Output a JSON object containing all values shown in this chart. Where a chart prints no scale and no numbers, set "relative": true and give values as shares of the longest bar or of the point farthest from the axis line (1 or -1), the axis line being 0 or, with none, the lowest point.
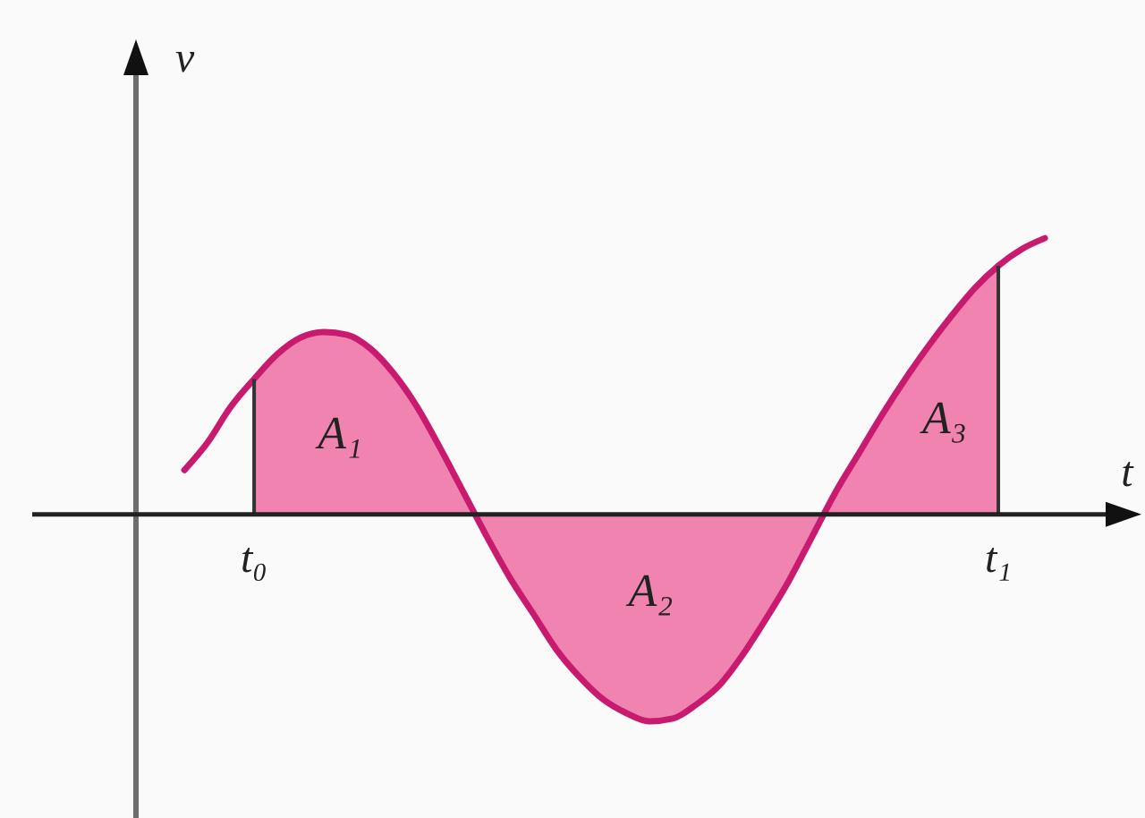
{
  "chart_data": {
    "type": "line",
    "relative": true,
    "xlabel": "t",
    "ylabel": "v",
    "categories": [
      null,
      null,
      null,
      "t₀",
      null,
      null,
      null,
      null,
      null,
      null,
      null,
      null,
      null,
      null,
      null,
      null,
      null,
      null,
      null,
      null,
      null,
      null,
      null,
      null,
      null,
      null,
      null,
      null,
      null,
      null,
      null,
      null,
      null,
      null,
      null,
      "t₁",
      null,
      null
    ],
    "series": [
      {
        "type": "area",
        "color": "#f083b0",
        "values": [
          null,
          null,
          null,
          0.49,
          0.58,
          0.64,
          0.66,
          0.65,
          0.6,
          0.51,
          0.39,
          0.24,
          0.08,
          -0.08,
          -0.23,
          -0.36,
          -0.49,
          -0.59,
          -0.67,
          -0.72,
          -0.75,
          -0.74,
          -0.69,
          -0.62,
          -0.51,
          -0.38,
          -0.24,
          -0.08,
          0.08,
          0.22,
          0.36,
          0.49,
          0.61,
          0.72,
          0.82,
          0.9,
          null,
          null
        ]
      },
      {
        "color": "#c81a6e",
        "values": [
          0.16,
          0.26,
          0.39,
          0.49,
          0.58,
          0.64,
          0.66,
          0.65,
          0.6,
          0.51,
          0.39,
          0.24,
          0.08,
          -0.08,
          -0.23,
          -0.36,
          -0.49,
          -0.59,
          -0.67,
          -0.72,
          -0.75,
          -0.74,
          -0.69,
          -0.62,
          -0.51,
          -0.38,
          -0.24,
          -0.08,
          0.08,
          0.22,
          0.36,
          0.49,
          0.61,
          0.72,
          0.82,
          0.9,
          0.96,
          1
        ]
      }
    ],
    "annotations": [
      "A₁",
      "A₂",
      "A₃"
    ]
  }
}
